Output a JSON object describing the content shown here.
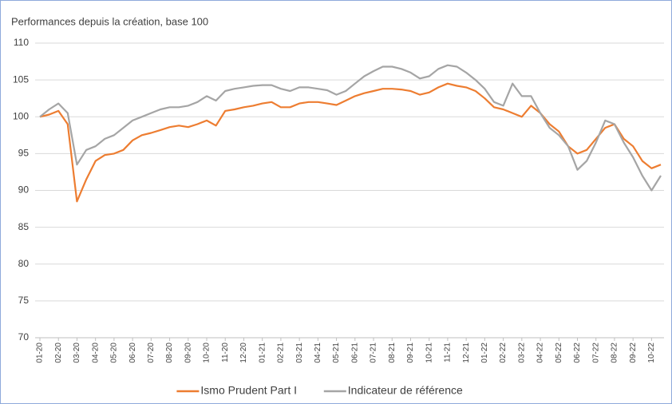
{
  "chart_data": {
    "type": "line",
    "title": "Performances depuis la création, base 100",
    "categories": [
      "01-20",
      null,
      "02-20",
      null,
      "03-20",
      null,
      "04-20",
      null,
      "05-20",
      null,
      "06-20",
      null,
      "07-20",
      null,
      "08-20",
      null,
      "09-20",
      null,
      "10-20",
      null,
      "11-20",
      null,
      "12-20",
      null,
      "01-21",
      null,
      "02-21",
      null,
      "03-21",
      null,
      "04-21",
      null,
      "05-21",
      null,
      "06-21",
      null,
      "07-21",
      null,
      "08-21",
      null,
      "09-21",
      null,
      "10-21",
      null,
      "11-21",
      null,
      "12-21",
      null,
      "01-22",
      null,
      "02-22",
      null,
      "03-22",
      null,
      "04-22",
      null,
      "05-22",
      null,
      "06-22",
      null,
      "07-22",
      null,
      "08-22",
      null,
      "09-22",
      null,
      "10-22",
      null
    ],
    "series": [
      {
        "name": "Ismo Prudent Part I",
        "color": "#ed7d31",
        "values": [
          100,
          100.3,
          100.8,
          99,
          88.5,
          91.5,
          94,
          94.8,
          95,
          95.5,
          96.8,
          97.5,
          97.8,
          98.2,
          98.6,
          98.8,
          98.6,
          99,
          99.5,
          98.8,
          100.8,
          101,
          101.3,
          101.5,
          101.8,
          102,
          101.3,
          101.3,
          101.8,
          102,
          102,
          101.8,
          101.6,
          102.2,
          102.8,
          103.2,
          103.5,
          103.8,
          103.8,
          103.7,
          103.5,
          103,
          103.3,
          104,
          104.5,
          104.2,
          104,
          103.5,
          102.5,
          101.3,
          101,
          100.5,
          100,
          101.5,
          100.5,
          99,
          98,
          96,
          95,
          95.5,
          97,
          98.5,
          99,
          97,
          96,
          94,
          93,
          93.5
        ]
      },
      {
        "name": "Indicateur de référence",
        "color": "#a5a5a5",
        "values": [
          100,
          101,
          101.8,
          100.5,
          93.5,
          95.5,
          96,
          97,
          97.5,
          98.5,
          99.5,
          100,
          100.5,
          101,
          101.3,
          101.3,
          101.5,
          102,
          102.8,
          102.2,
          103.5,
          103.8,
          104,
          104.2,
          104.3,
          104.3,
          103.8,
          103.5,
          104,
          104,
          103.8,
          103.6,
          103,
          103.5,
          104.5,
          105.5,
          106.2,
          106.8,
          106.8,
          106.5,
          106,
          105.2,
          105.5,
          106.5,
          107,
          106.8,
          106,
          105,
          103.8,
          102,
          101.5,
          104.5,
          102.8,
          102.8,
          100.5,
          98.5,
          97.5,
          96,
          92.8,
          94,
          96.5,
          99.5,
          99,
          96.5,
          94.5,
          92,
          90,
          92
        ]
      }
    ],
    "ylim": [
      70,
      110
    ],
    "yticks": [
      70,
      75,
      80,
      85,
      90,
      95,
      100,
      105,
      110
    ],
    "grid": true,
    "legend": "bottom"
  }
}
